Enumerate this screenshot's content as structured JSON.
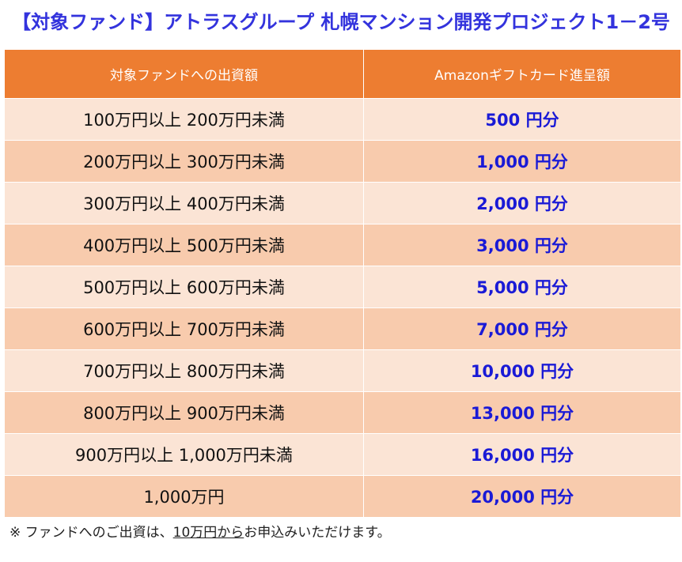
{
  "title": "【対象ファンド】アトラスグループ 札幌マンション開発プロジェクト1－2号",
  "table": {
    "headers": {
      "range": "対象ファンドへの出資額",
      "amount": "Amazonギフトカード進呈額"
    },
    "rows": [
      {
        "range": "100万円以上 200万円未満",
        "amount": "500 円分"
      },
      {
        "range": "200万円以上 300万円未満",
        "amount": "1,000 円分"
      },
      {
        "range": "300万円以上 400万円未満",
        "amount": "2,000 円分"
      },
      {
        "range": "400万円以上 500万円未満",
        "amount": "3,000 円分"
      },
      {
        "range": "500万円以上 600万円未満",
        "amount": "5,000 円分"
      },
      {
        "range": "600万円以上 700万円未満",
        "amount": "7,000 円分"
      },
      {
        "range": "700万円以上 800万円未満",
        "amount": "10,000 円分"
      },
      {
        "range": "800万円以上 900万円未満",
        "amount": "13,000 円分"
      },
      {
        "range": "900万円以上 1,000万円未満",
        "amount": "16,000 円分"
      },
      {
        "range": "1,000万円",
        "amount": "20,000 円分"
      }
    ]
  },
  "footnote": {
    "prefix": "※ ファンドへのご出資は、",
    "underlined": "10万円から",
    "suffix": "お申込みいただけます。"
  },
  "colors": {
    "title": "#3333dd",
    "header_bg": "#ed7d31",
    "row_light": "#fbe4d5",
    "row_dark": "#f8cbad",
    "amount_text": "#1a1ad6"
  }
}
